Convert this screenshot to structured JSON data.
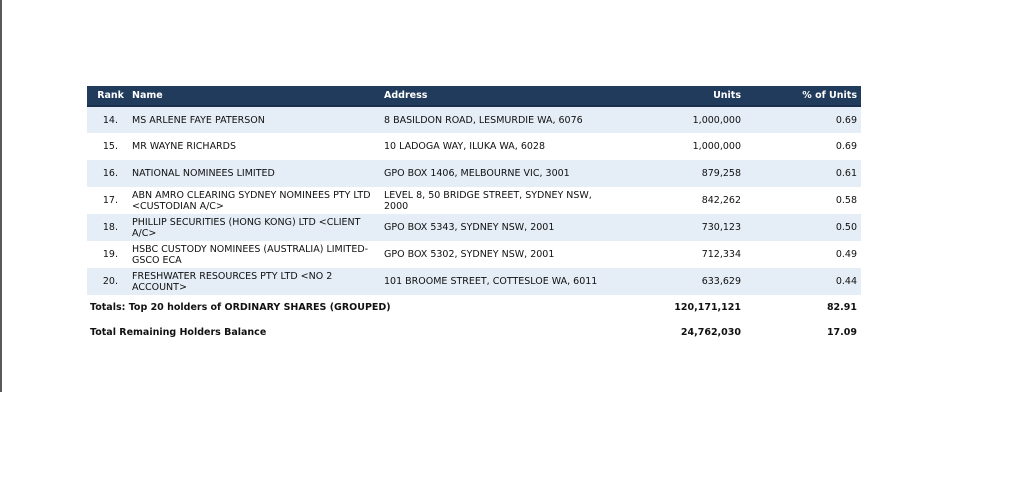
{
  "table": {
    "headers": {
      "rank": "Rank",
      "name": "Name",
      "address": "Address",
      "units": "Units",
      "pct": "% of Units"
    },
    "rows": [
      {
        "rank": "14.",
        "name": "MS ARLENE FAYE PATERSON",
        "address": "8 BASILDON ROAD, LESMURDIE WA, 6076",
        "units": "1,000,000",
        "pct": "0.69"
      },
      {
        "rank": "15.",
        "name": "MR WAYNE RICHARDS",
        "address": "10 LADOGA WAY, ILUKA WA, 6028",
        "units": "1,000,000",
        "pct": "0.69"
      },
      {
        "rank": "16.",
        "name": "NATIONAL NOMINEES LIMITED",
        "address": "GPO BOX 1406, MELBOURNE VIC, 3001",
        "units": "879,258",
        "pct": "0.61"
      },
      {
        "rank": "17.",
        "name": "ABN AMRO CLEARING SYDNEY NOMINEES PTY LTD <CUSTODIAN A/C>",
        "address": "LEVEL 8, 50 BRIDGE STREET, SYDNEY NSW, 2000",
        "units": "842,262",
        "pct": "0.58"
      },
      {
        "rank": "18.",
        "name": "PHILLIP SECURITIES (HONG KONG) LTD <CLIENT A/C>",
        "address": "GPO BOX 5343, SYDNEY NSW, 2001",
        "units": "730,123",
        "pct": "0.50"
      },
      {
        "rank": "19.",
        "name": "HSBC CUSTODY NOMINEES (AUSTRALIA) LIMITED-GSCO ECA",
        "address": "GPO BOX 5302, SYDNEY NSW, 2001",
        "units": "712,334",
        "pct": "0.49"
      },
      {
        "rank": "20.",
        "name": "FRESHWATER RESOURCES PTY LTD <NO 2 ACCOUNT>",
        "address": "101 BROOME STREET, COTTESLOE WA, 6011",
        "units": "633,629",
        "pct": "0.44"
      }
    ],
    "totals": {
      "label": "Totals: Top 20 holders of ORDINARY SHARES (GROUPED)",
      "units": "120,171,121",
      "pct": "82.91"
    },
    "remaining": {
      "label": "Total Remaining Holders Balance",
      "units": "24,762,030",
      "pct": "17.09"
    }
  }
}
